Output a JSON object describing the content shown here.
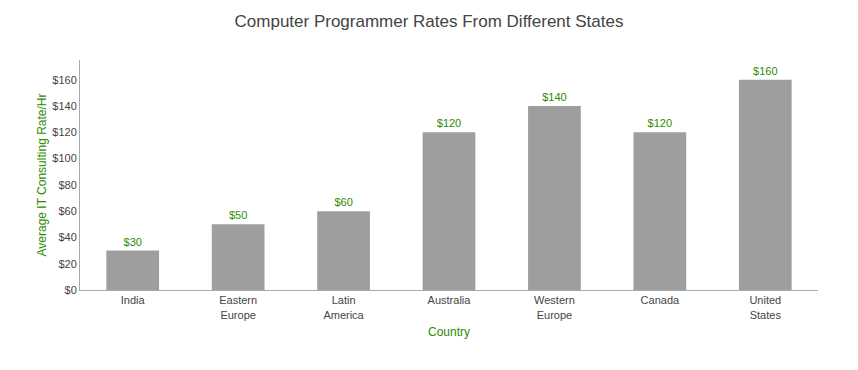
{
  "chart_data": {
    "type": "bar",
    "title": "Computer Programmer Rates From Different States",
    "categories": [
      "India",
      "Eastern\nEurope",
      "Latin\nAmerica",
      "Australia",
      "Western\nEurope",
      "Canada",
      "United\nStates"
    ],
    "values": [
      30,
      50,
      60,
      120,
      140,
      120,
      160
    ],
    "value_labels": [
      "$30",
      "$50",
      "$60",
      "$120",
      "$140",
      "$120",
      "$160"
    ],
    "data_labels": true,
    "color": "#9e9e9e",
    "xlabel": "Country",
    "ylabel": "Average IT Consulting Rate/Hr",
    "ylim": [
      0,
      175
    ],
    "yticks": [
      {
        "value": 0,
        "label": "$0"
      },
      {
        "value": 20,
        "label": "$20"
      },
      {
        "value": 40,
        "label": "$40"
      },
      {
        "value": 60,
        "label": "$60"
      },
      {
        "value": 80,
        "label": "$80"
      },
      {
        "value": 100,
        "label": "$100"
      },
      {
        "value": 120,
        "label": "$120"
      },
      {
        "value": 140,
        "label": "$140"
      },
      {
        "value": 160,
        "label": "$160"
      }
    ],
    "grid": false
  }
}
